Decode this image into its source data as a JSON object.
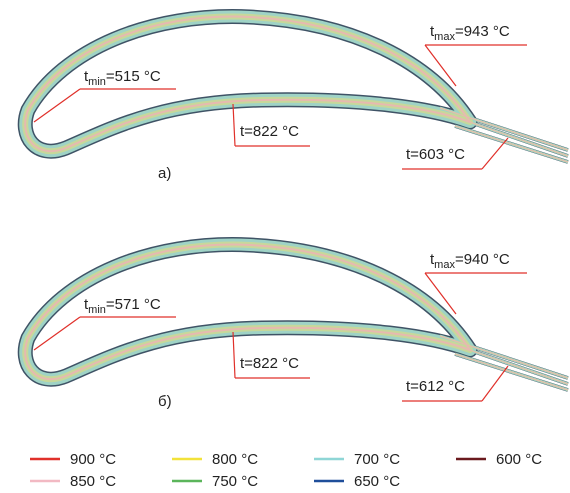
{
  "panels": [
    {
      "label": "а)",
      "annotations": [
        {
          "symbol": "t",
          "subscript": "max",
          "text": "=943 °C"
        },
        {
          "symbol": "t",
          "subscript": "min",
          "text": "=515 °C"
        },
        {
          "text": "t=822 °C"
        },
        {
          "text": "t=603 °C"
        }
      ]
    },
    {
      "label": "б)",
      "annotations": [
        {
          "symbol": "t",
          "subscript": "max",
          "text": "=940 °C"
        },
        {
          "symbol": "t",
          "subscript": "min",
          "text": "=571 °C"
        },
        {
          "text": "t=822 °C"
        },
        {
          "text": "t=612 °C"
        }
      ]
    }
  ],
  "legend": [
    {
      "label": "900 °C",
      "color": "#e0302a"
    },
    {
      "label": "800 °C",
      "color": "#f2e23a"
    },
    {
      "label": "700 °C",
      "color": "#8fd6d6"
    },
    {
      "label": "600 °C",
      "color": "#6a1a1e"
    },
    {
      "label": "850 °C",
      "color": "#f2b9c3"
    },
    {
      "label": "750 °C",
      "color": "#5bb55b"
    },
    {
      "label": "650 °C",
      "color": "#1f4e9a"
    }
  ]
}
